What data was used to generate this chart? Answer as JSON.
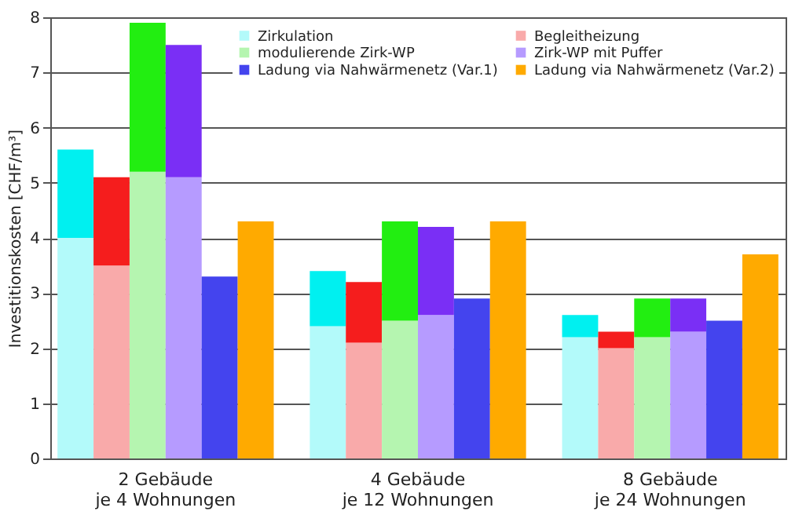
{
  "chart_data": {
    "type": "bar",
    "ylabel": "Investitionskosten [CHF/m³]",
    "categories": [
      null,
      null,
      null,
      null,
      null,
      null,
      null,
      null,
      null,
      null,
      null,
      null,
      null,
      null,
      null,
      null,
      null,
      null,
      null,
      null
    ],
    "annotations": [
      "2 Gebäude\nje 4 Wohnungen",
      "4 Gebäude\nje 12 Wohnungen",
      "8 Gebäude\nje 24 Wohnungen"
    ],
    "stacked": true,
    "ylim": [
      0,
      8
    ],
    "yticks": [
      0,
      1,
      2,
      3,
      4,
      5,
      6,
      7,
      8
    ],
    "grid": "y",
    "legend": "top right",
    "series": [
      {
        "name": "Zirkulation",
        "color": "#b3fafa",
        "values": [
          4.0,
          null,
          null,
          null,
          null,
          null,
          null,
          2.4,
          null,
          null,
          null,
          null,
          null,
          null,
          2.2,
          null,
          null,
          null,
          null,
          null
        ]
      },
      {
        "color": "#00f0f0",
        "values": [
          1.6,
          null,
          null,
          null,
          null,
          null,
          null,
          1.0,
          null,
          null,
          null,
          null,
          null,
          null,
          0.4,
          null,
          null,
          null,
          null,
          null
        ]
      },
      {
        "name": "Begleitheizung",
        "color": "#f9aaaa",
        "values": [
          null,
          3.5,
          null,
          null,
          null,
          null,
          null,
          null,
          2.1,
          null,
          null,
          null,
          null,
          null,
          null,
          2.0,
          null,
          null,
          null,
          null
        ]
      },
      {
        "color": "#f51d1d",
        "values": [
          null,
          1.6,
          null,
          null,
          null,
          null,
          null,
          null,
          1.1,
          null,
          null,
          null,
          null,
          null,
          null,
          0.3,
          null,
          null,
          null,
          null
        ]
      },
      {
        "name": "modulierende Zirk-WP",
        "color": "#b5f5b0",
        "values": [
          null,
          null,
          5.2,
          null,
          null,
          null,
          null,
          null,
          null,
          2.5,
          null,
          null,
          null,
          null,
          null,
          null,
          2.2,
          null,
          null,
          null
        ]
      },
      {
        "color": "#22ee11",
        "values": [
          null,
          null,
          2.7,
          null,
          null,
          null,
          null,
          null,
          null,
          1.8,
          null,
          null,
          null,
          null,
          null,
          null,
          0.7,
          null,
          null,
          null
        ]
      },
      {
        "name": "Zirk-WP mit Puffer",
        "color": "#b69bff",
        "values": [
          null,
          null,
          null,
          5.1,
          null,
          null,
          null,
          null,
          null,
          null,
          2.6,
          null,
          null,
          null,
          null,
          null,
          null,
          2.3,
          null,
          null
        ]
      },
      {
        "color": "#7a2ff5",
        "values": [
          null,
          null,
          null,
          2.4,
          null,
          null,
          null,
          null,
          null,
          null,
          1.6,
          null,
          null,
          null,
          null,
          null,
          null,
          0.6,
          null,
          null
        ]
      },
      {
        "name": "Ladung via Nahwärmenetz (Var.1)",
        "color": "#4444ee",
        "values": [
          null,
          null,
          null,
          null,
          3.3,
          null,
          null,
          null,
          null,
          null,
          null,
          2.9,
          null,
          null,
          null,
          null,
          null,
          null,
          2.5,
          null
        ]
      },
      {
        "name": "Ladung via Nahwärmenetz (Var.2)",
        "color": "#ffaa00",
        "values": [
          null,
          null,
          null,
          null,
          null,
          4.3,
          null,
          null,
          null,
          null,
          null,
          null,
          4.3,
          null,
          null,
          null,
          null,
          null,
          null,
          3.7
        ]
      }
    ]
  }
}
